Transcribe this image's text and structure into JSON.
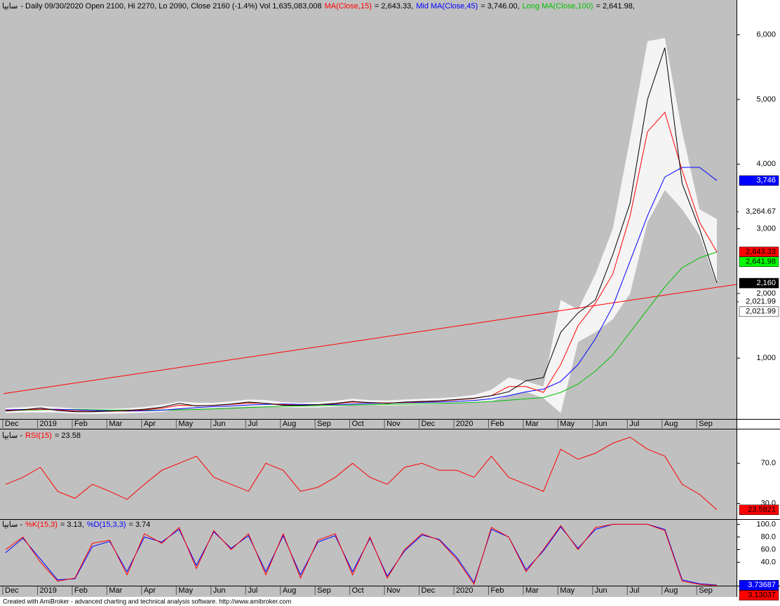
{
  "chart_data": [
    {
      "type": "line",
      "header": [
        {
          "text": "سایپا",
          "color": "#000000"
        },
        {
          "text": "- Daily 09/30/2020 Open 2100, Hi 2270, Lo 2090, Close 2160 (-1.4%) Vol 1,635,083,008",
          "color": "#000000"
        },
        {
          "text": "MA(Close,15)",
          "color": "#ff0000"
        },
        {
          "text": "= 2,643.33,",
          "color": "#000000"
        },
        {
          "text": "Mid MA(Close,45)",
          "color": "#0000ff"
        },
        {
          "text": "= 3,746.00,",
          "color": "#000000"
        },
        {
          "text": "Long MA(Close,100)",
          "color": "#00c000"
        },
        {
          "text": "= 2,641.98,",
          "color": "#000000"
        }
      ],
      "categories": [
        "Dec",
        null,
        "2019",
        null,
        "Feb",
        null,
        "Mar",
        null,
        "Apr",
        null,
        "May",
        null,
        "Jun",
        null,
        "Jul",
        null,
        "Aug",
        null,
        "Sep",
        null,
        "Oct",
        null,
        "Nov",
        null,
        "Dec",
        null,
        "2020",
        null,
        "Feb",
        null,
        "Mar",
        null,
        "May",
        null,
        "Jun",
        null,
        "Jul",
        null,
        "Aug",
        null,
        "Sep",
        null
      ],
      "ylim": [
        70,
        6300
      ],
      "yticks": [
        {
          "value": 1000,
          "label": "1,000"
        },
        {
          "value": 2000,
          "label": "2,000"
        },
        {
          "value": 3000,
          "label": "3,000"
        },
        {
          "value": 4000,
          "label": "4,000"
        },
        {
          "value": 5000,
          "label": "5,000"
        },
        {
          "value": 6000,
          "label": "6,000"
        }
      ],
      "band": {
        "color": "#f4f4f4",
        "upper": [
          230,
          240,
          260,
          240,
          220,
          215,
          215,
          225,
          245,
          280,
          330,
          310,
          310,
          330,
          360,
          350,
          320,
          310,
          320,
          340,
          370,
          350,
          345,
          360,
          370,
          380,
          400,
          430,
          510,
          700,
          640,
          560,
          1900,
          1750,
          2300,
          3000,
          4400,
          5900,
          5950,
          4500,
          3300,
          3150
        ],
        "lower": [
          150,
          160,
          160,
          160,
          140,
          135,
          140,
          145,
          155,
          170,
          210,
          220,
          225,
          240,
          250,
          250,
          240,
          235,
          236,
          250,
          270,
          275,
          265,
          270,
          280,
          290,
          310,
          320,
          330,
          420,
          480,
          380,
          150,
          1250,
          1400,
          1600,
          2000,
          3100,
          3600,
          3300,
          2900,
          2130
        ]
      },
      "trendline": {
        "color": "#ff0000",
        "values": [
          450,
          2140
        ]
      },
      "series": [
        {
          "color": "#00c000",
          "values": [
            190,
            195,
            200,
            205,
            205,
            200,
            198,
            196,
            195,
            197,
            200,
            205,
            215,
            225,
            235,
            245,
            255,
            260,
            265,
            270,
            275,
            280,
            285,
            290,
            295,
            300,
            305,
            315,
            330,
            350,
            370,
            390,
            470,
            600,
            800,
            1050,
            1400,
            1750,
            2100,
            2400,
            2550,
            2641.98
          ]
        },
        {
          "color": "#0000ff",
          "values": [
            200,
            205,
            210,
            208,
            200,
            190,
            185,
            182,
            185,
            195,
            215,
            235,
            250,
            260,
            275,
            285,
            290,
            285,
            280,
            282,
            290,
            300,
            305,
            310,
            315,
            320,
            330,
            345,
            370,
            420,
            480,
            520,
            640,
            900,
            1300,
            1800,
            2500,
            3200,
            3800,
            3950,
            3950,
            3746
          ]
        },
        {
          "color": "#ff0000",
          "values": [
            190,
            200,
            210,
            200,
            180,
            175,
            178,
            185,
            200,
            225,
            270,
            265,
            268,
            285,
            305,
            300,
            280,
            272,
            278,
            295,
            320,
            312,
            305,
            315,
            325,
            335,
            355,
            375,
            420,
            560,
            560,
            470,
            900,
            1500,
            1850,
            2300,
            3200,
            4500,
            4800,
            3900,
            3100,
            2643.33
          ]
        },
        {
          "color": "#000000",
          "values": [
            180,
            200,
            230,
            190,
            170,
            170,
            180,
            190,
            210,
            240,
            300,
            260,
            270,
            290,
            320,
            300,
            270,
            270,
            280,
            300,
            330,
            310,
            300,
            320,
            330,
            340,
            360,
            380,
            420,
            480,
            650,
            700,
            1400,
            1700,
            1900,
            2600,
            3400,
            5000,
            5800,
            3700,
            3000,
            2160
          ]
        }
      ],
      "markers": [
        {
          "value": 3746,
          "label": "3,746",
          "color": "#0000ff",
          "text_color": "#ffffff"
        },
        {
          "value": 3264.67,
          "label": "3,264.67"
        },
        {
          "value": 2643.33,
          "label": "2,643.33",
          "color": "#ff0000",
          "text_color": "#000000"
        },
        {
          "value": 2641.98,
          "label": "2,641.98",
          "color": "#00ff00",
          "text_color": "#000000"
        },
        {
          "value": 2160,
          "label": "2,160",
          "color": "#000000",
          "text_color": "#ffffff"
        },
        {
          "value": 2021.99,
          "label": "2,021.99"
        },
        {
          "value": 2021.99,
          "label": "2,021.99",
          "color": "#ffffff",
          "text_color": "#000000"
        }
      ]
    },
    {
      "type": "line",
      "header": [
        {
          "text": "سایپا -",
          "color": "#000000"
        },
        {
          "text": "RSI(15)",
          "color": "#ff0000"
        },
        {
          "text": "= 23.58",
          "color": "#000000"
        }
      ],
      "ylim": [
        15,
        103
      ],
      "yticks": [
        {
          "value": 70,
          "label": "70.0"
        },
        {
          "value": 30,
          "label": "30.0"
        }
      ],
      "series": [
        {
          "color": "#ff0000",
          "values": [
            49,
            56,
            66,
            42,
            35,
            49,
            42,
            34,
            49,
            63,
            70,
            77,
            56,
            49,
            42,
            70,
            63,
            42,
            46,
            56,
            70,
            56,
            49,
            66,
            70,
            63,
            63,
            56,
            77,
            56,
            49,
            42,
            84,
            74,
            80,
            90,
            96,
            84,
            77,
            49,
            39,
            23.58
          ]
        }
      ],
      "markers": [
        {
          "value": 23.5821,
          "label": "23.5821",
          "color": "#ff0000",
          "text_color": "#000000"
        }
      ]
    },
    {
      "type": "line",
      "header": [
        {
          "text": "سایپا -",
          "color": "#000000"
        },
        {
          "text": "%K(15,3)",
          "color": "#ff0000"
        },
        {
          "text": "= 3.13,",
          "color": "#000000"
        },
        {
          "text": "%D(15,3,3)",
          "color": "#0000ff"
        },
        {
          "text": "= 3.74",
          "color": "#000000"
        }
      ],
      "ylim": [
        4,
        106
      ],
      "yticks": [
        {
          "value": 100,
          "label": "100.0"
        },
        {
          "value": 80,
          "label": "80.0"
        },
        {
          "value": 60,
          "label": "60.0"
        },
        {
          "value": 40,
          "label": "40.0"
        }
      ],
      "series": [
        {
          "color": "#0000ff",
          "values": [
            55,
            78,
            45,
            12,
            14,
            65,
            73,
            25,
            80,
            72,
            92,
            35,
            88,
            62,
            82,
            25,
            82,
            20,
            72,
            82,
            25,
            78,
            18,
            58,
            83,
            76,
            48,
            8,
            92,
            80,
            28,
            58,
            96,
            62,
            92,
            100,
            100,
            100,
            92,
            12,
            6,
            3.74
          ]
        },
        {
          "color": "#ff0000",
          "values": [
            60,
            80,
            40,
            10,
            15,
            70,
            75,
            20,
            85,
            70,
            95,
            30,
            90,
            60,
            85,
            20,
            85,
            15,
            75,
            85,
            20,
            80,
            15,
            60,
            85,
            75,
            45,
            5,
            95,
            80,
            25,
            60,
            98,
            60,
            95,
            100,
            100,
            100,
            90,
            10,
            5,
            3.13
          ]
        }
      ],
      "markers": [
        {
          "value": 3.73687,
          "label": "3.73687",
          "color": "#0000ff",
          "text_color": "#ffffff"
        },
        {
          "value": 3.13037,
          "label": "3.13037",
          "color": "#ff0000",
          "text_color": "#000000"
        }
      ]
    }
  ],
  "footer": "Created with AmiBroker - advanced charting and technical analysis software. http://www.amibroker.com"
}
